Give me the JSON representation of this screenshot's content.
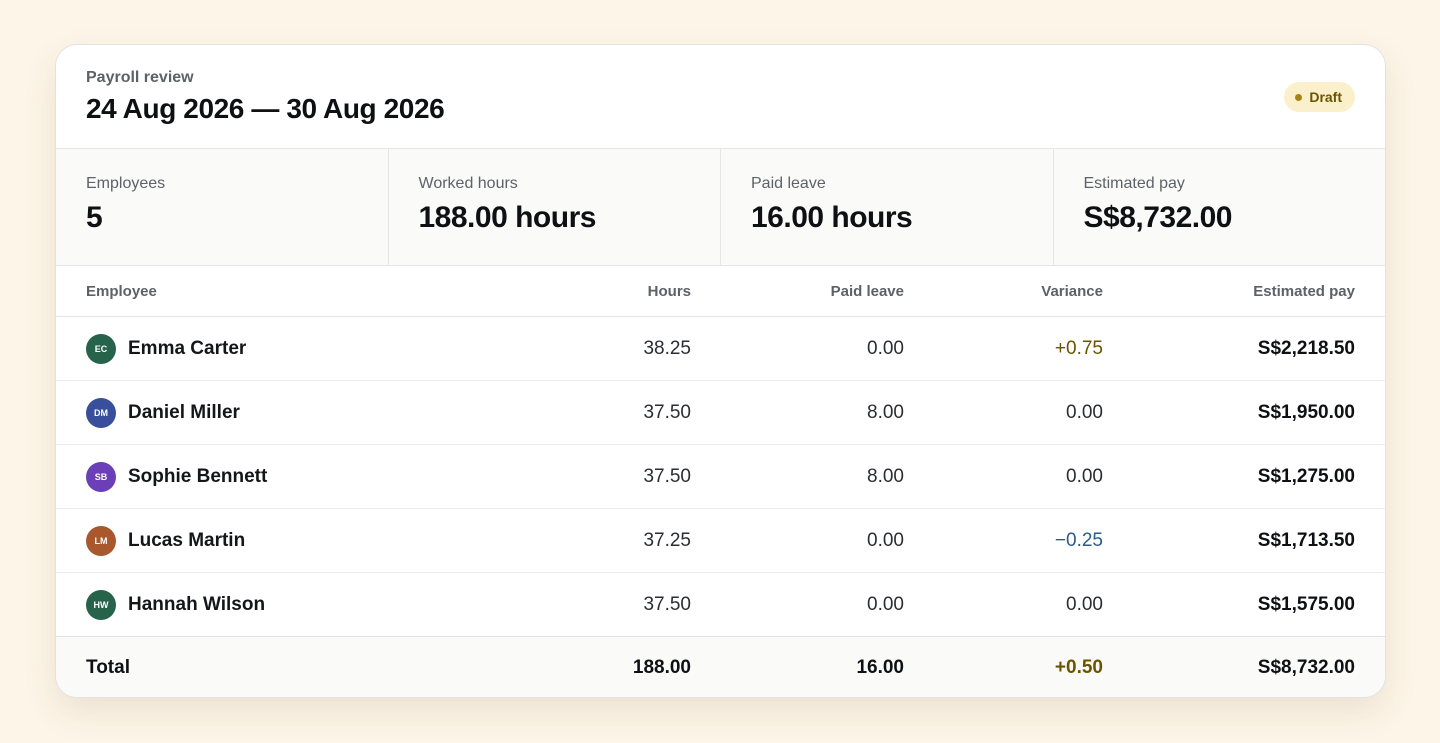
{
  "header": {
    "eyebrow": "Payroll review",
    "title": "24 Aug 2026 — 30 Aug 2026",
    "status": "Draft"
  },
  "stats": [
    {
      "label": "Employees",
      "value": "5"
    },
    {
      "label": "Worked hours",
      "value": "188.00 hours"
    },
    {
      "label": "Paid leave",
      "value": "16.00 hours"
    },
    {
      "label": "Estimated pay",
      "value": "S$8,732.00"
    }
  ],
  "table": {
    "columns": {
      "employee": "Employee",
      "hours": "Hours",
      "leave": "Paid leave",
      "variance": "Variance",
      "pay": "Estimated pay"
    },
    "rows": [
      {
        "initials": "EC",
        "name": "Emma Carter",
        "color": "#27634a",
        "hours": "38.25",
        "leave": "0.00",
        "variance": "+0.75",
        "variance_type": "pos",
        "pay": "S$2,218.50"
      },
      {
        "initials": "DM",
        "name": "Daniel Miller",
        "color": "#3a4f9c",
        "hours": "37.50",
        "leave": "8.00",
        "variance": "0.00",
        "variance_type": "neutral",
        "pay": "S$1,950.00"
      },
      {
        "initials": "SB",
        "name": "Sophie Bennett",
        "color": "#6b3fb8",
        "hours": "37.50",
        "leave": "8.00",
        "variance": "0.00",
        "variance_type": "neutral",
        "pay": "S$1,275.00"
      },
      {
        "initials": "LM",
        "name": "Lucas Martin",
        "color": "#a9572d",
        "hours": "37.25",
        "leave": "0.00",
        "variance": "−0.25",
        "variance_type": "neg",
        "pay": "S$1,713.50"
      },
      {
        "initials": "HW",
        "name": "Hannah Wilson",
        "color": "#27634a",
        "hours": "37.50",
        "leave": "0.00",
        "variance": "0.00",
        "variance_type": "neutral",
        "pay": "S$1,575.00"
      }
    ],
    "total": {
      "label": "Total",
      "hours": "188.00",
      "leave": "16.00",
      "variance": "+0.50",
      "pay": "S$8,732.00"
    }
  },
  "colors": {
    "background": "#fdf5e7",
    "badge_bg": "#fbf0cc",
    "positive": "#6b5400",
    "negative": "#2d5a8c"
  }
}
